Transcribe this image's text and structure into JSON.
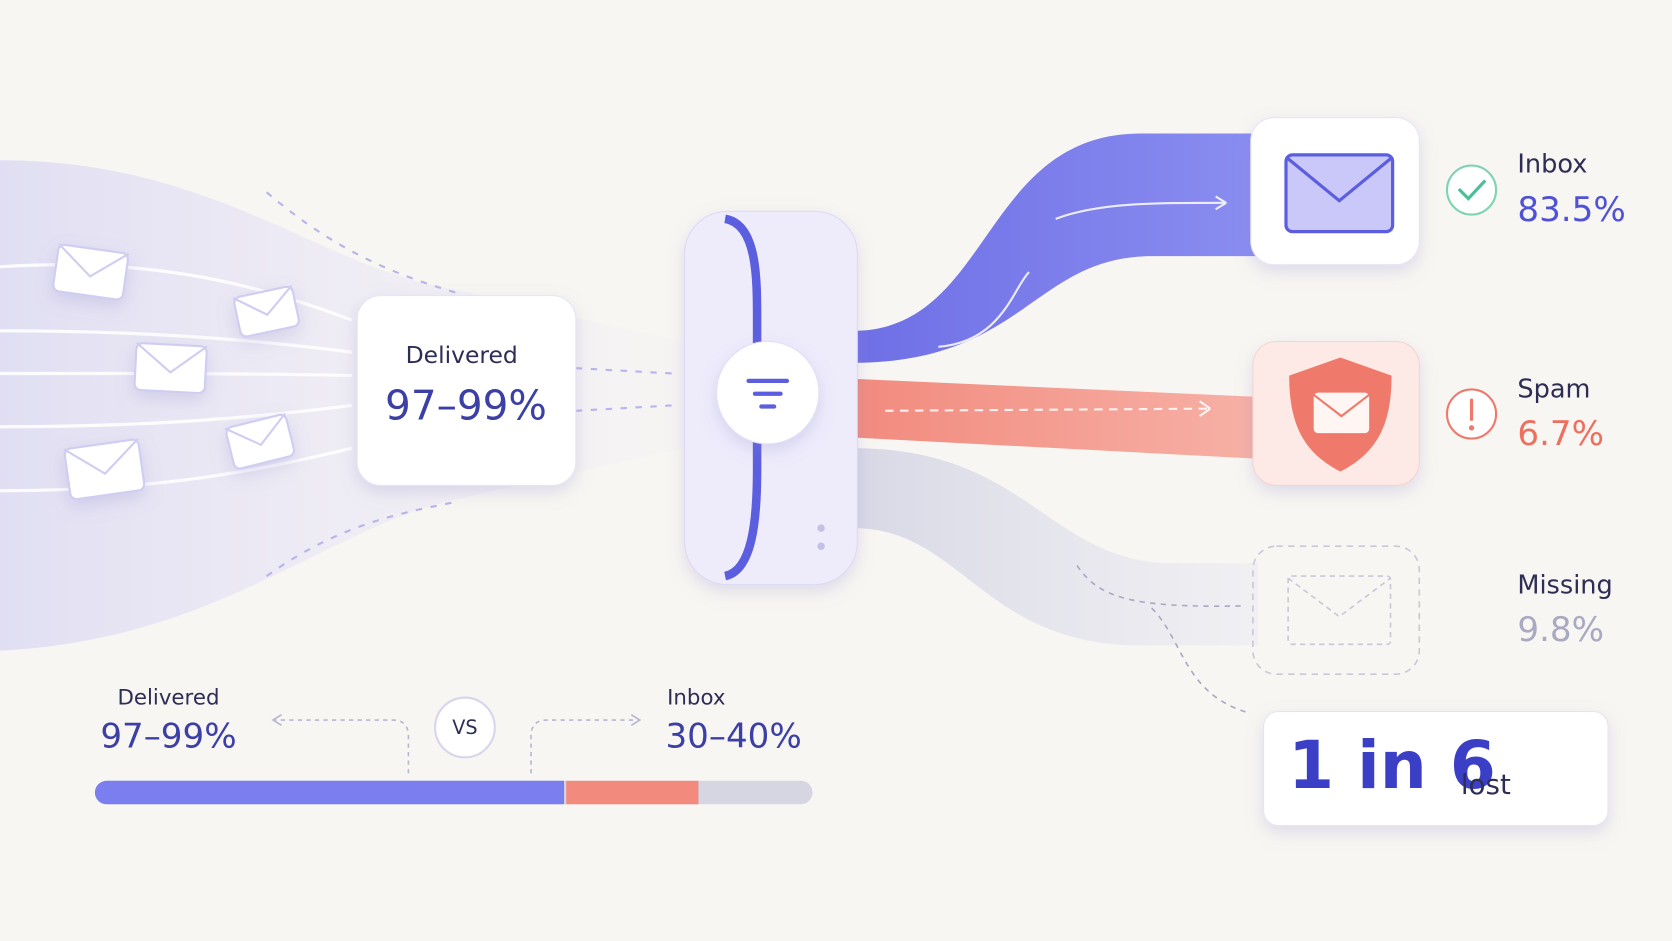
{
  "delivered_card": {
    "label": "Delivered",
    "value": "97–99%"
  },
  "outcomes": [
    {
      "label": "Inbox",
      "value": "83.5%"
    },
    {
      "label": "Spam",
      "value": "6.7%"
    },
    {
      "label": "Missing",
      "value": "9.8%"
    }
  ],
  "comparison": {
    "left": {
      "label": "Delivered",
      "value": "97–99%"
    },
    "vs": "VS",
    "right": {
      "label": "Inbox",
      "value": "30–40%"
    }
  },
  "lost_card": {
    "big": "1 in 6",
    "small": "lost"
  }
}
